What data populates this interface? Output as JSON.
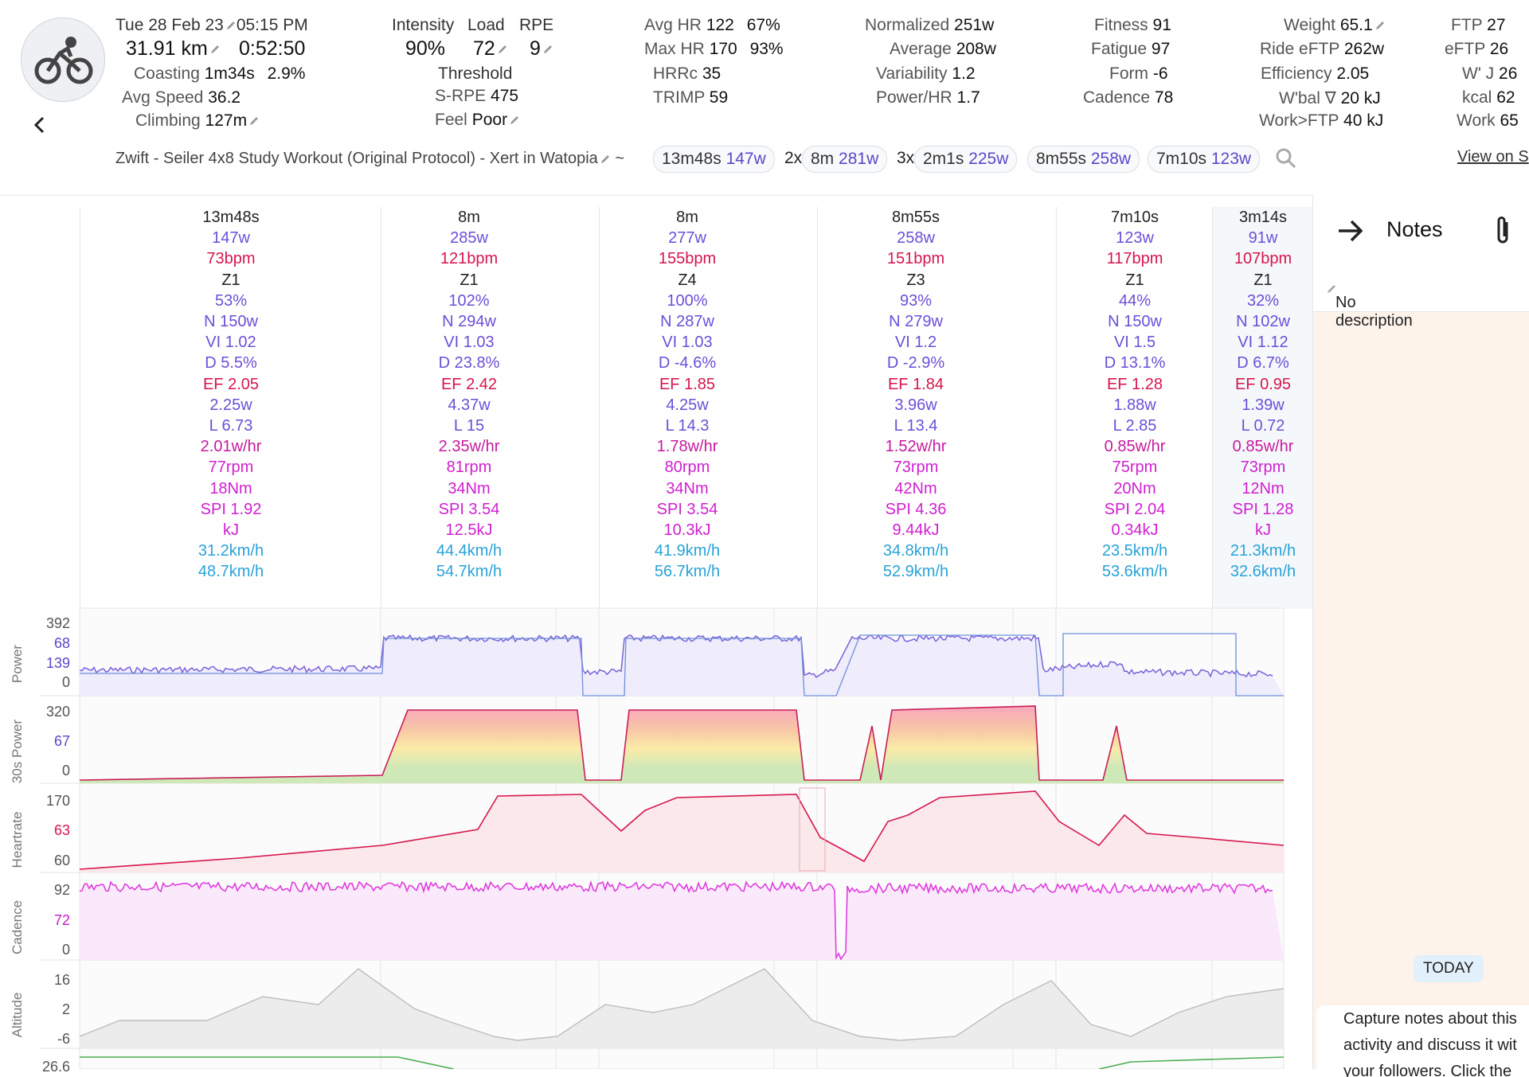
{
  "header": {
    "date": "Tue 28 Feb 23",
    "time": "05:15 PM",
    "distance": "31.91 km",
    "duration": "0:52:50",
    "coasting_label": "Coasting",
    "coasting_value": "1m34s",
    "coasting_pct": "2.9%",
    "avg_speed_label": "Avg Speed",
    "avg_speed_value": "36.2",
    "climbing_label": "Climbing",
    "climbing_value": "127m",
    "intensity_label": "Intensity",
    "intensity_value": "90%",
    "load_label": "Load",
    "load_value": "72",
    "rpe_label": "RPE",
    "rpe_value": "9",
    "threshold_label": "Threshold",
    "srpe_label": "S-RPE",
    "srpe_value": "475",
    "feel_label": "Feel",
    "feel_value": "Poor",
    "avg_hr_label": "Avg HR",
    "avg_hr_value": "122",
    "avg_hr_pct": "67%",
    "max_hr_label": "Max HR",
    "max_hr_value": "170",
    "max_hr_pct": "93%",
    "hrrc_label": "HRRc",
    "hrrc_value": "35",
    "trimp_label": "TRIMP",
    "trimp_value": "59",
    "normalized_label": "Normalized",
    "normalized_value": "251w",
    "average_label": "Average",
    "average_value": "208w",
    "variability_label": "Variability",
    "variability_value": "1.2",
    "powerhr_label": "Power/HR",
    "powerhr_value": "1.7",
    "fitness_label": "Fitness",
    "fitness_value": "91",
    "fatigue_label": "Fatigue",
    "fatigue_value": "97",
    "form_label": "Form",
    "form_value": "-6",
    "cadence_label": "Cadence",
    "cadence_value": "78",
    "weight_label": "Weight",
    "weight_value": "65.1",
    "ride_eftp_label": "Ride eFTP",
    "ride_eftp_value": "262w",
    "efficiency_label": "Efficiency",
    "efficiency_value": "2.05",
    "wbal_label": "W'bal ∇",
    "wbal_value": "20 kJ",
    "workftp_label": "Work>FTP",
    "workftp_value": "40 kJ",
    "ftp_label": "FTP",
    "ftp_value": "27",
    "eftp_label": "eFTP",
    "eftp_value": "26",
    "wj_label": "W' J",
    "wj_value": "26",
    "kcal_label": "kcal",
    "kcal_value": "62",
    "work_label": "Work",
    "work_value": "65",
    "title": "Zwift - Seiler 4x8 Study Workout (Original Protocol) - Xert in Watopia",
    "tilde": "~",
    "chips": [
      {
        "mult": "",
        "dur": "13m48s",
        "w": "147w"
      },
      {
        "mult": "2x",
        "dur": "8m",
        "w": "281w"
      },
      {
        "mult": "3x",
        "dur": "2m1s",
        "w": "225w"
      },
      {
        "mult": "",
        "dur": "8m55s",
        "w": "258w"
      },
      {
        "mult": "",
        "dur": "7m10s",
        "w": "123w"
      }
    ],
    "view_on": "View on S"
  },
  "intervals": [
    {
      "dur": "13m48s",
      "w": "147w",
      "bpm": "73bpm",
      "zone": "Z1",
      "pct": "53%",
      "nw": "N 150w",
      "vi": "VI 1.02",
      "d": "D 5.5%",
      "ef": "EF 2.05",
      "wkg": "2.25w",
      "l": "L 6.73",
      "whr": "2.01w/hr",
      "rpm": "77rpm",
      "nm": "18Nm",
      "spi": "SPI 1.92",
      "kj": "kJ",
      "spd": "31.2km/h",
      "max": "48.7km/h"
    },
    {
      "dur": "8m",
      "w": "285w",
      "bpm": "121bpm",
      "zone": "Z1",
      "pct": "102%",
      "nw": "N 294w",
      "vi": "VI 1.03",
      "d": "D 23.8%",
      "ef": "EF 2.42",
      "wkg": "4.37w",
      "l": "L 15",
      "whr": "2.35w/hr",
      "rpm": "81rpm",
      "nm": "34Nm",
      "spi": "SPI 3.54",
      "kj": "12.5kJ",
      "spd": "44.4km/h",
      "max": "54.7km/h"
    },
    {
      "dur": "8m",
      "w": "277w",
      "bpm": "155bpm",
      "zone": "Z4",
      "pct": "100%",
      "nw": "N 287w",
      "vi": "VI 1.03",
      "d": "D -4.6%",
      "ef": "EF 1.85",
      "wkg": "4.25w",
      "l": "L 14.3",
      "whr": "1.78w/hr",
      "rpm": "80rpm",
      "nm": "34Nm",
      "spi": "SPI 3.54",
      "kj": "10.3kJ",
      "spd": "41.9km/h",
      "max": "56.7km/h"
    },
    {
      "dur": "8m55s",
      "w": "258w",
      "bpm": "151bpm",
      "zone": "Z3",
      "pct": "93%",
      "nw": "N 279w",
      "vi": "VI 1.2",
      "d": "D -2.9%",
      "ef": "EF 1.84",
      "wkg": "3.96w",
      "l": "L 13.4",
      "whr": "1.52w/hr",
      "rpm": "73rpm",
      "nm": "42Nm",
      "spi": "SPI 4.36",
      "kj": "9.44kJ",
      "spd": "34.8km/h",
      "max": "52.9km/h"
    },
    {
      "dur": "7m10s",
      "w": "123w",
      "bpm": "117bpm",
      "zone": "Z1",
      "pct": "44%",
      "nw": "N 150w",
      "vi": "VI 1.5",
      "d": "D 13.1%",
      "ef": "EF 1.28",
      "wkg": "1.88w",
      "l": "L 2.85",
      "whr": "0.85w/hr",
      "rpm": "75rpm",
      "nm": "20Nm",
      "spi": "SPI 2.04",
      "kj": "0.34kJ",
      "spd": "23.5km/h",
      "max": "53.6km/h"
    },
    {
      "dur": "3m14s",
      "w": "91w",
      "bpm": "107bpm",
      "zone": "Z1",
      "pct": "32%",
      "nw": "N 102w",
      "vi": "VI 1.12",
      "d": "D 6.7%",
      "ef": "EF 0.95",
      "wkg": "1.39w",
      "l": "L 0.72",
      "whr": "0.85w/hr",
      "rpm": "73rpm",
      "nm": "12Nm",
      "spi": "SPI 1.28",
      "kj": "kJ",
      "spd": "21.3km/h",
      "max": "32.6km/h"
    }
  ],
  "charts": {
    "power": {
      "label": "Power",
      "ticks": [
        "392",
        "68",
        "139",
        "0"
      ]
    },
    "power30": {
      "label": "30s Power",
      "ticks": [
        "320",
        "67",
        "0"
      ]
    },
    "heartrate": {
      "label": "Heartrate",
      "ticks": [
        "170",
        "63",
        "60"
      ]
    },
    "cadence": {
      "label": "Cadence",
      "ticks": [
        "92",
        "72",
        "0"
      ]
    },
    "altitude": {
      "label": "Altitude",
      "ticks": [
        "16",
        "2",
        "-6"
      ]
    },
    "speed": {
      "ticks": [
        "26.6"
      ]
    }
  },
  "colors": {
    "power": "#7b61d9",
    "hr": "#d6164c",
    "cadence": "#dd35dd",
    "altitude": "#bdbdbd",
    "speed": "#4caf50"
  },
  "notes": {
    "title": "Notes",
    "no_description": "No description",
    "today": "TODAY",
    "bubble_lines": [
      "Capture notes about this",
      "activity and discuss it wit",
      "your followers. Click the"
    ]
  },
  "icons": {
    "back": "arrow-left-icon",
    "cycling": "bicycle-rider-icon",
    "search": "search-icon",
    "arrow": "arrow-right-icon",
    "attach": "paperclip-icon",
    "edit": "pencil-icon"
  }
}
